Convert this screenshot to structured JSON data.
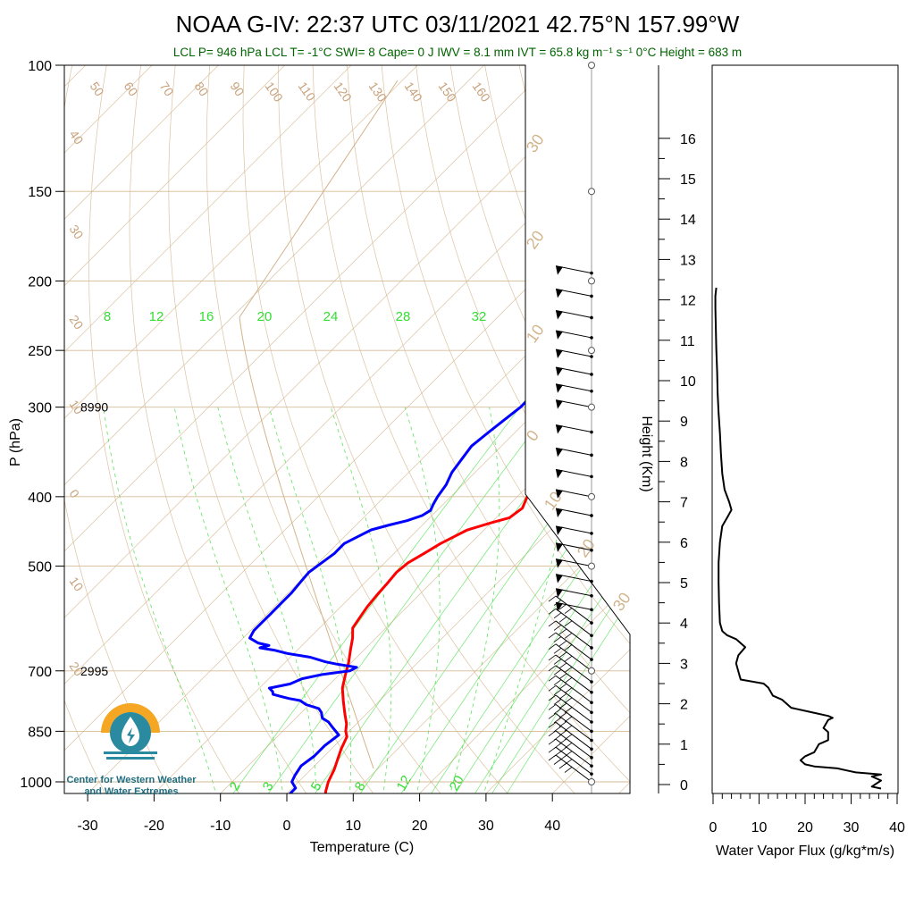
{
  "title": "NOAA G-IV: 22:37 UTC 03/11/2021  42.75°N 157.99°W",
  "subtitle": "LCL P= 946 hPa  LCL T= -1°C  SWI= 8  Cape= 0 J  IWV = 8.1 mm  IVT = 65.8 kg m⁻¹ s⁻¹  0°C Height = 683 m",
  "logo": {
    "line1": "Center for Western Weather",
    "line2": "and Water Extremes"
  },
  "colors": {
    "temperature": "#ff0000",
    "dewpoint": "#0000ff",
    "dry_adiabat": "#d2b48c",
    "mixing_ratio": "#33dd33",
    "moist_adiabat": "#33dd33",
    "isotherm": "#d2b48c"
  },
  "chart_data": [
    {
      "type": "line",
      "name": "skew-t",
      "xlabel": "Temperature (C)",
      "ylabel": "P (hPa)",
      "xlim": [
        -33,
        52
      ],
      "ylim": [
        1050,
        100
      ],
      "y_scale": "log",
      "x_ticks": [
        -30,
        -20,
        -10,
        0,
        10,
        20,
        30,
        40
      ],
      "y_ticks": [
        100,
        150,
        200,
        250,
        300,
        400,
        500,
        700,
        850,
        1000
      ],
      "height_labels": [
        {
          "p": 300,
          "text": "8990"
        },
        {
          "p": 700,
          "text": "2995"
        }
      ],
      "dry_adiabat_labels": [
        "50",
        "60",
        "70",
        "80",
        "90",
        "100",
        "110",
        "120",
        "130",
        "140",
        "150",
        "160"
      ],
      "left_adiabat_labels": [
        "40",
        "30",
        "20",
        "10",
        "0",
        "10",
        "20"
      ],
      "mixing_ratio_labels_top": [
        "8",
        "12",
        "16",
        "20",
        "24",
        "28",
        "32"
      ],
      "mixing_ratio_labels_bottom": [
        "2",
        "3",
        "5",
        "8",
        "12",
        "20"
      ],
      "moist_adiabat_labels": [
        "30",
        "20",
        "10",
        "0",
        "10",
        "20",
        "30"
      ],
      "series": [
        {
          "name": "Temperature",
          "points": [
            [
              6.3,
              1050
            ],
            [
              5.5,
              1030
            ],
            [
              4.5,
              1000
            ],
            [
              3.5,
              960
            ],
            [
              2.5,
              930
            ],
            [
              1.5,
              900
            ],
            [
              0.5,
              865
            ],
            [
              -0.5,
              850
            ],
            [
              -1.5,
              830
            ],
            [
              -3.5,
              800
            ],
            [
              -5.5,
              770
            ],
            [
              -7.5,
              740
            ],
            [
              -9,
              710
            ],
            [
              -10.5,
              680
            ],
            [
              -12,
              655
            ],
            [
              -13.5,
              630
            ],
            [
              -15,
              610
            ],
            [
              -15.5,
              590
            ],
            [
              -16,
              570
            ],
            [
              -16.3,
              550
            ],
            [
              -16.5,
              530
            ],
            [
              -16.8,
              510
            ],
            [
              -16.5,
              495
            ],
            [
              -15.5,
              480
            ],
            [
              -14.5,
              465
            ],
            [
              -13.5,
              455
            ],
            [
              -12.5,
              445
            ],
            [
              -10,
              435
            ],
            [
              -8,
              428
            ],
            [
              -7.5,
              415
            ],
            [
              -8.5,
              400
            ],
            [
              -9,
              385
            ],
            [
              -10,
              370
            ],
            [
              -11,
              355
            ],
            [
              -12,
              340
            ],
            [
              -13,
              325
            ],
            [
              -12.5,
              312
            ],
            [
              -12,
              300
            ],
            [
              -12,
              290
            ],
            [
              -11.5,
              280
            ],
            [
              -12,
              270
            ],
            [
              -12.5,
              262
            ],
            [
              -12,
              252
            ],
            [
              -11.5,
              245
            ],
            [
              -12,
              240
            ],
            [
              -12.5,
              232
            ],
            [
              -11.5,
              225
            ],
            [
              -10.5,
              218
            ],
            [
              -9.5,
              212
            ],
            [
              -8,
              205
            ],
            [
              -7.5,
              200
            ],
            [
              -6.5,
              195
            ],
            [
              -5,
              190
            ],
            [
              -4,
              188
            ]
          ]
        },
        {
          "name": "Dewpoint",
          "points": [
            [
              0.5,
              1040
            ],
            [
              0.5,
              1020
            ],
            [
              -1,
              1000
            ],
            [
              -1.5,
              980
            ],
            [
              -2,
              950
            ],
            [
              -1.5,
              920
            ],
            [
              -1.5,
              890
            ],
            [
              -1,
              860
            ],
            [
              -3,
              840
            ],
            [
              -4.5,
              825
            ],
            [
              -6,
              815
            ],
            [
              -7,
              800
            ],
            [
              -8,
              790
            ],
            [
              -10.5,
              780
            ],
            [
              -12,
              770
            ],
            [
              -14,
              765
            ],
            [
              -15.5,
              760
            ],
            [
              -17,
              755
            ],
            [
              -17.5,
              748
            ],
            [
              -18.5,
              740
            ],
            [
              -16,
              730
            ],
            [
              -15,
              718
            ],
            [
              -12.5,
              708
            ],
            [
              -9,
              700
            ],
            [
              -8.5,
              692
            ],
            [
              -12,
              685
            ],
            [
              -14,
              680
            ],
            [
              -17,
              670
            ],
            [
              -21,
              662
            ],
            [
              -23.5,
              655
            ],
            [
              -26,
              650
            ],
            [
              -25,
              645
            ],
            [
              -27,
              640
            ],
            [
              -29,
              630
            ],
            [
              -29.5,
              615
            ],
            [
              -29.5,
              600
            ],
            [
              -29.5,
              585
            ],
            [
              -29.5,
              565
            ],
            [
              -29.5,
              545
            ],
            [
              -29.8,
              525
            ],
            [
              -30,
              510
            ],
            [
              -29.5,
              495
            ],
            [
              -29,
              480
            ],
            [
              -29,
              465
            ],
            [
              -28,
              455
            ],
            [
              -27,
              445
            ],
            [
              -25,
              438
            ],
            [
              -23,
              432
            ],
            [
              -21.5,
              425
            ],
            [
              -21,
              418
            ],
            [
              -21.5,
              410
            ],
            [
              -22,
              400
            ],
            [
              -22.5,
              385
            ],
            [
              -23.5,
              370
            ],
            [
              -24,
              355
            ],
            [
              -24.5,
              340
            ],
            [
              -24,
              325
            ],
            [
              -23.5,
              312
            ],
            [
              -23,
              300
            ],
            [
              -23,
              290
            ],
            [
              -22.5,
              280
            ],
            [
              -23,
              270
            ],
            [
              -23.5,
              260
            ],
            [
              -24,
              250
            ],
            [
              -24.5,
              242
            ],
            [
              -24,
              235
            ],
            [
              -24,
              228
            ],
            [
              -24.5,
              222
            ],
            [
              -24,
              215
            ],
            [
              -23.5,
              210
            ],
            [
              -23,
              205
            ],
            [
              -22.5,
              200
            ],
            [
              -22,
              195
            ],
            [
              -21,
              190
            ],
            [
              -19.5,
              185
            ]
          ]
        }
      ]
    },
    {
      "type": "line",
      "name": "wind-barbs",
      "xlabel": "",
      "ylabel": "",
      "barb_pressures": [
        1000,
        975,
        950,
        925,
        900,
        875,
        850,
        825,
        800,
        775,
        750,
        725,
        700,
        675,
        650,
        625,
        600,
        575,
        550,
        525,
        500,
        475,
        450,
        425,
        400,
        375,
        350,
        325,
        300,
        285,
        270,
        255,
        240,
        225,
        210,
        195
      ]
    },
    {
      "type": "line",
      "name": "water-vapor-flux",
      "xlabel": "Water Vapor Flux (g/kg*m/s)",
      "ylabel": "Height (Km)",
      "xlim": [
        0,
        40
      ],
      "ylim": [
        -0.3,
        16.4
      ],
      "x_ticks": [
        0,
        10,
        20,
        30,
        40
      ],
      "y_ticks": [
        0,
        1,
        2,
        3,
        4,
        5,
        6,
        7,
        8,
        9,
        10,
        11,
        12,
        13,
        14,
        15,
        16
      ],
      "series": [
        {
          "name": "Flux",
          "points": [
            [
              36.5,
              -0.1
            ],
            [
              34.5,
              -0.05
            ],
            [
              36.5,
              0.1
            ],
            [
              34.5,
              0.2
            ],
            [
              36.5,
              0.25
            ],
            [
              31,
              0.3
            ],
            [
              29,
              0.35
            ],
            [
              27,
              0.4
            ],
            [
              22,
              0.45
            ],
            [
              20,
              0.5
            ],
            [
              19,
              0.6
            ],
            [
              20,
              0.7
            ],
            [
              22,
              0.8
            ],
            [
              23,
              1.0
            ],
            [
              25,
              1.1
            ],
            [
              25,
              1.3
            ],
            [
              24,
              1.4
            ],
            [
              25,
              1.6
            ],
            [
              26,
              1.65
            ],
            [
              25,
              1.7
            ],
            [
              21,
              1.8
            ],
            [
              17,
              1.9
            ],
            [
              15,
              2.1
            ],
            [
              13,
              2.2
            ],
            [
              12,
              2.4
            ],
            [
              11,
              2.5
            ],
            [
              6,
              2.6
            ],
            [
              5.5,
              2.8
            ],
            [
              5,
              3.0
            ],
            [
              5.5,
              3.2
            ],
            [
              7,
              3.4
            ],
            [
              5,
              3.6
            ],
            [
              3,
              3.7
            ],
            [
              2,
              3.8
            ],
            [
              1.5,
              4.0
            ],
            [
              1.3,
              4.5
            ],
            [
              1.2,
              5.0
            ],
            [
              1.2,
              5.5
            ],
            [
              1.5,
              6.0
            ],
            [
              2,
              6.4
            ],
            [
              3,
              6.6
            ],
            [
              4,
              6.8
            ],
            [
              3.5,
              7.0
            ],
            [
              2.5,
              7.3
            ],
            [
              2,
              7.7
            ],
            [
              1.7,
              8.2
            ],
            [
              1.5,
              8.7
            ],
            [
              1.2,
              9.2
            ],
            [
              1,
              9.7
            ],
            [
              0.9,
              10.2
            ],
            [
              0.7,
              10.8
            ],
            [
              0.6,
              11.3
            ],
            [
              0.5,
              11.8
            ],
            [
              0.5,
              12.1
            ],
            [
              0.7,
              12.3
            ]
          ]
        }
      ]
    }
  ]
}
